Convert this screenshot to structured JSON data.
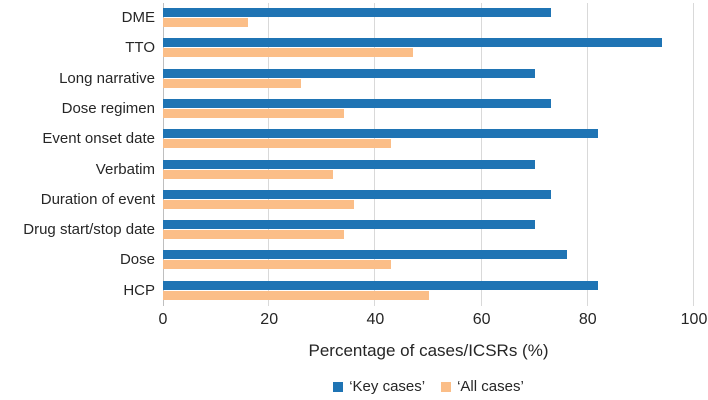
{
  "chart_data": {
    "type": "bar",
    "orientation": "horizontal",
    "title": "",
    "categories": [
      "DME",
      "TTO",
      "Long narrative",
      "Dose regimen",
      "Event onset date",
      "Verbatim",
      "Duration of event",
      "Drug start/stop date",
      "Dose",
      "HCP"
    ],
    "series": [
      {
        "name": "‘Key cases’",
        "color": "#1F74B4",
        "values": [
          73,
          94,
          70,
          73,
          82,
          70,
          73,
          70,
          76,
          82
        ]
      },
      {
        "name": "‘All cases’",
        "color": "#FBBE88",
        "values": [
          16,
          47,
          26,
          34,
          43,
          32,
          36,
          34,
          43,
          50
        ]
      }
    ],
    "xlabel": "Percentage of cases/ICSRs (%)",
    "xlim": [
      0,
      100
    ],
    "xticks": [
      0,
      20,
      40,
      60,
      80,
      100
    ],
    "grid": "vertical-gridlines-on",
    "legend_position": "bottom-center",
    "colors": {
      "gridline": "#D9D9D9",
      "axis_line": "#BFBFBF",
      "text": "#262626",
      "background": "#FFFFFF"
    }
  }
}
